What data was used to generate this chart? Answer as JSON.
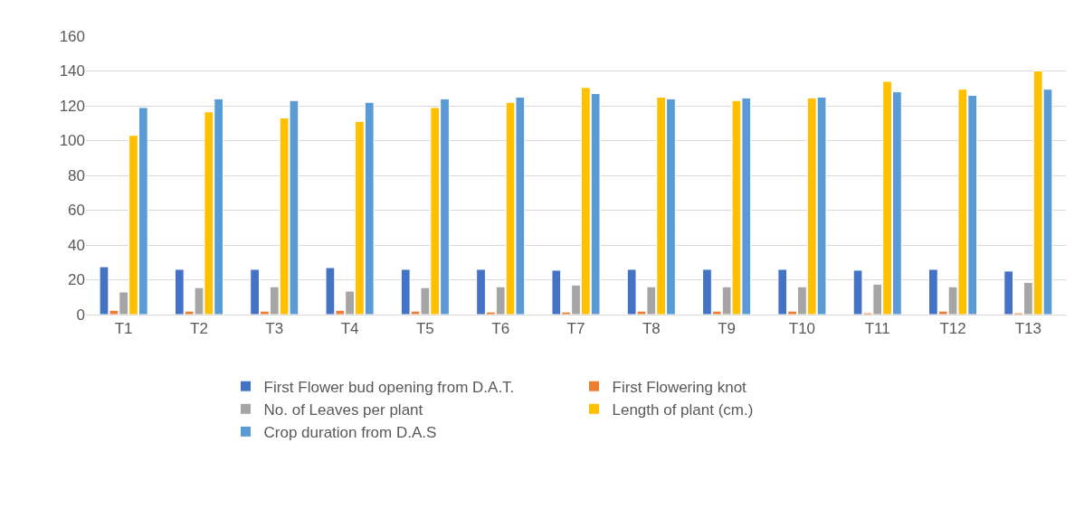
{
  "chart_data": {
    "type": "bar",
    "categories": [
      "T1",
      "T2",
      "T3",
      "T4",
      "T5",
      "T6",
      "T7",
      "T8",
      "T9",
      "T10",
      "T11",
      "T12",
      "T13"
    ],
    "series": [
      {
        "name": "First Flower bud opening from D.A.T.",
        "color": "#4472c4",
        "values": [
          27.5,
          26,
          26,
          27,
          26,
          26,
          25.5,
          26,
          26,
          26,
          25.5,
          26,
          25
        ]
      },
      {
        "name": "First Flowering knot",
        "color": "#ed7d31",
        "values": [
          2.5,
          2,
          2,
          2.5,
          2,
          1.5,
          1.5,
          2,
          2,
          2,
          1,
          2,
          1
        ]
      },
      {
        "name": "No. of Leaves per plant",
        "color": "#a5a5a5",
        "values": [
          13,
          15.5,
          16,
          13.5,
          15.5,
          16,
          17,
          16,
          16,
          16,
          17.5,
          16,
          18.5
        ]
      },
      {
        "name": "Length of plant (cm.)",
        "color": "#ffc000",
        "values": [
          103,
          116.5,
          113,
          111,
          119,
          122,
          130.5,
          125,
          123,
          124.5,
          134,
          129.5,
          140
        ]
      },
      {
        "name": "Crop duration from D.A.S",
        "color": "#5b9bd5",
        "values": [
          119,
          124,
          123,
          122,
          124,
          125,
          127,
          124,
          124.5,
          125,
          128,
          126,
          129.5
        ]
      }
    ],
    "ylim": [
      0,
      160
    ],
    "yticks": [
      0,
      20,
      40,
      60,
      80,
      100,
      120,
      140,
      160
    ],
    "grid": "y",
    "legend": "bottom"
  }
}
